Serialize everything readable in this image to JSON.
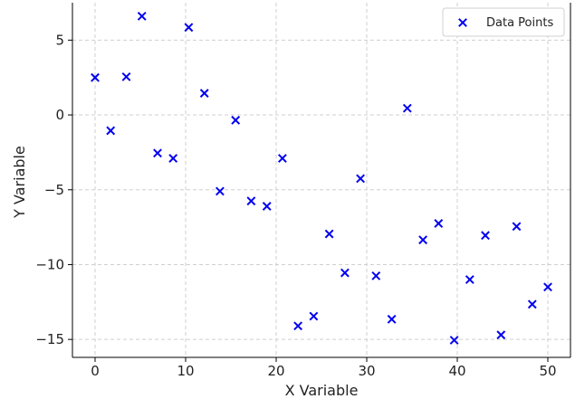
{
  "chart_data": {
    "type": "scatter",
    "xlabel": "X Variable",
    "ylabel": "Y Variable",
    "xlim": [
      -2.5,
      52.5
    ],
    "ylim": [
      -16.2,
      7.5
    ],
    "xticks": [
      0,
      10,
      20,
      30,
      40,
      50
    ],
    "yticks": [
      5,
      0,
      -5,
      -10,
      -15
    ],
    "ytick_labels": [
      "5",
      "0",
      "−5",
      "−10",
      "−15"
    ],
    "grid": true,
    "legend": {
      "position": "top-right",
      "entries": [
        "Data Points"
      ]
    },
    "series": [
      {
        "name": "Data Points",
        "marker": "x",
        "color": "#0000ee",
        "points": [
          [
            0,
            2.5
          ],
          [
            1.72,
            -1.05
          ],
          [
            3.45,
            2.55
          ],
          [
            5.17,
            6.6
          ],
          [
            6.9,
            -2.55
          ],
          [
            8.62,
            -2.9
          ],
          [
            10.34,
            5.85
          ],
          [
            12.07,
            1.45
          ],
          [
            13.79,
            -5.1
          ],
          [
            15.52,
            -0.35
          ],
          [
            17.24,
            -5.75
          ],
          [
            18.97,
            -6.1
          ],
          [
            20.69,
            -2.9
          ],
          [
            22.41,
            -14.1
          ],
          [
            24.14,
            -13.45
          ],
          [
            25.86,
            -7.95
          ],
          [
            27.59,
            -10.55
          ],
          [
            29.31,
            -4.25
          ],
          [
            31.03,
            -10.75
          ],
          [
            32.76,
            -13.65
          ],
          [
            34.48,
            0.45
          ],
          [
            36.21,
            -8.35
          ],
          [
            37.93,
            -7.25
          ],
          [
            39.66,
            -15.05
          ],
          [
            41.38,
            -11.0
          ],
          [
            43.1,
            -8.05
          ],
          [
            44.83,
            -14.7
          ],
          [
            46.55,
            -7.45
          ],
          [
            48.28,
            -12.65
          ],
          [
            50.0,
            -11.5
          ]
        ]
      }
    ]
  }
}
